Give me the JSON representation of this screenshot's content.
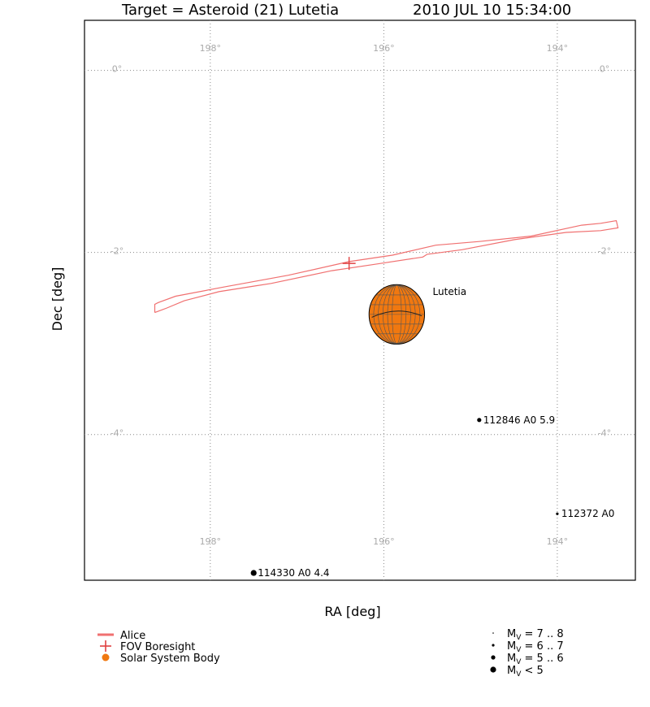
{
  "header": {
    "title_target": "Target = Asteroid (21) Lutetia",
    "title_time": "2010 JUL 10 15:34:00"
  },
  "chart_data": {
    "type": "scatter",
    "xlabel": "RA [deg]",
    "ylabel": "Dec [deg]",
    "xlim": [
      199.45,
      193.1
    ],
    "ylim": [
      -5.6,
      0.55
    ],
    "x_ticks": [
      {
        "value": 198,
        "label": "198°"
      },
      {
        "value": 196,
        "label": "196°"
      },
      {
        "value": 194,
        "label": "194°"
      }
    ],
    "y_ticks": [
      {
        "value": 0,
        "label": "0°"
      },
      {
        "value": -2,
        "label": "-2°"
      },
      {
        "value": -4,
        "label": "-4°"
      }
    ],
    "grid": true,
    "fov": {
      "name": "Alice",
      "color": "#f07070",
      "outline": [
        [
          198.64,
          -2.66
        ],
        [
          198.64,
          -2.57
        ],
        [
          198.6,
          -2.55
        ],
        [
          198.4,
          -2.48
        ],
        [
          197.85,
          -2.38
        ],
        [
          197.1,
          -2.25
        ],
        [
          196.4,
          -2.1
        ],
        [
          195.9,
          -2.03
        ],
        [
          195.4,
          -1.92
        ],
        [
          194.9,
          -1.88
        ],
        [
          194.3,
          -1.82
        ],
        [
          193.72,
          -1.7
        ],
        [
          193.5,
          -1.68
        ],
        [
          193.32,
          -1.65
        ],
        [
          193.3,
          -1.73
        ],
        [
          193.5,
          -1.76
        ],
        [
          193.9,
          -1.78
        ],
        [
          194.5,
          -1.86
        ],
        [
          195.1,
          -1.97
        ],
        [
          195.5,
          -2.02
        ],
        [
          195.55,
          -2.05
        ],
        [
          196.1,
          -2.13
        ],
        [
          196.6,
          -2.2
        ],
        [
          197.3,
          -2.34
        ],
        [
          197.5,
          -2.37
        ],
        [
          197.9,
          -2.43
        ],
        [
          198.3,
          -2.53
        ],
        [
          198.5,
          -2.61
        ],
        [
          198.64,
          -2.66
        ]
      ]
    },
    "boresight": {
      "name": "FOV Boresight",
      "ra": 196.4,
      "dec": -2.12,
      "color": "#e04040"
    },
    "solar_system_bodies": [
      {
        "name": "Lutetia",
        "ra": 195.85,
        "dec": -2.68,
        "radius_deg": 0.32,
        "color": "#f07810"
      }
    ],
    "stars": [
      {
        "label": "112846 A0 5.9",
        "ra": 194.9,
        "dec": -3.84,
        "mag_class": 2
      },
      {
        "label": "112372 A0",
        "ra": 194.0,
        "dec": -4.87,
        "mag_class": 1
      },
      {
        "label": "114330 A0 4.4",
        "ra": 197.5,
        "dec": -5.52,
        "mag_class": 3
      }
    ],
    "legend": {
      "placement": "bottom",
      "items": [
        {
          "kind": "line",
          "label": "Alice",
          "color": "#f07070"
        },
        {
          "kind": "cross",
          "label": "FOV Boresight",
          "color": "#e04040"
        },
        {
          "kind": "dot",
          "label": "Solar System Body",
          "color": "#f07810"
        }
      ],
      "magnitudes": [
        {
          "class": 0,
          "label": " = 7 .. 8"
        },
        {
          "class": 1,
          "label": " = 6 .. 7"
        },
        {
          "class": 2,
          "label": " = 5 .. 6"
        },
        {
          "class": 3,
          "label": " < 5"
        }
      ],
      "mag_symbol": "M",
      "mag_sub": "V"
    }
  }
}
